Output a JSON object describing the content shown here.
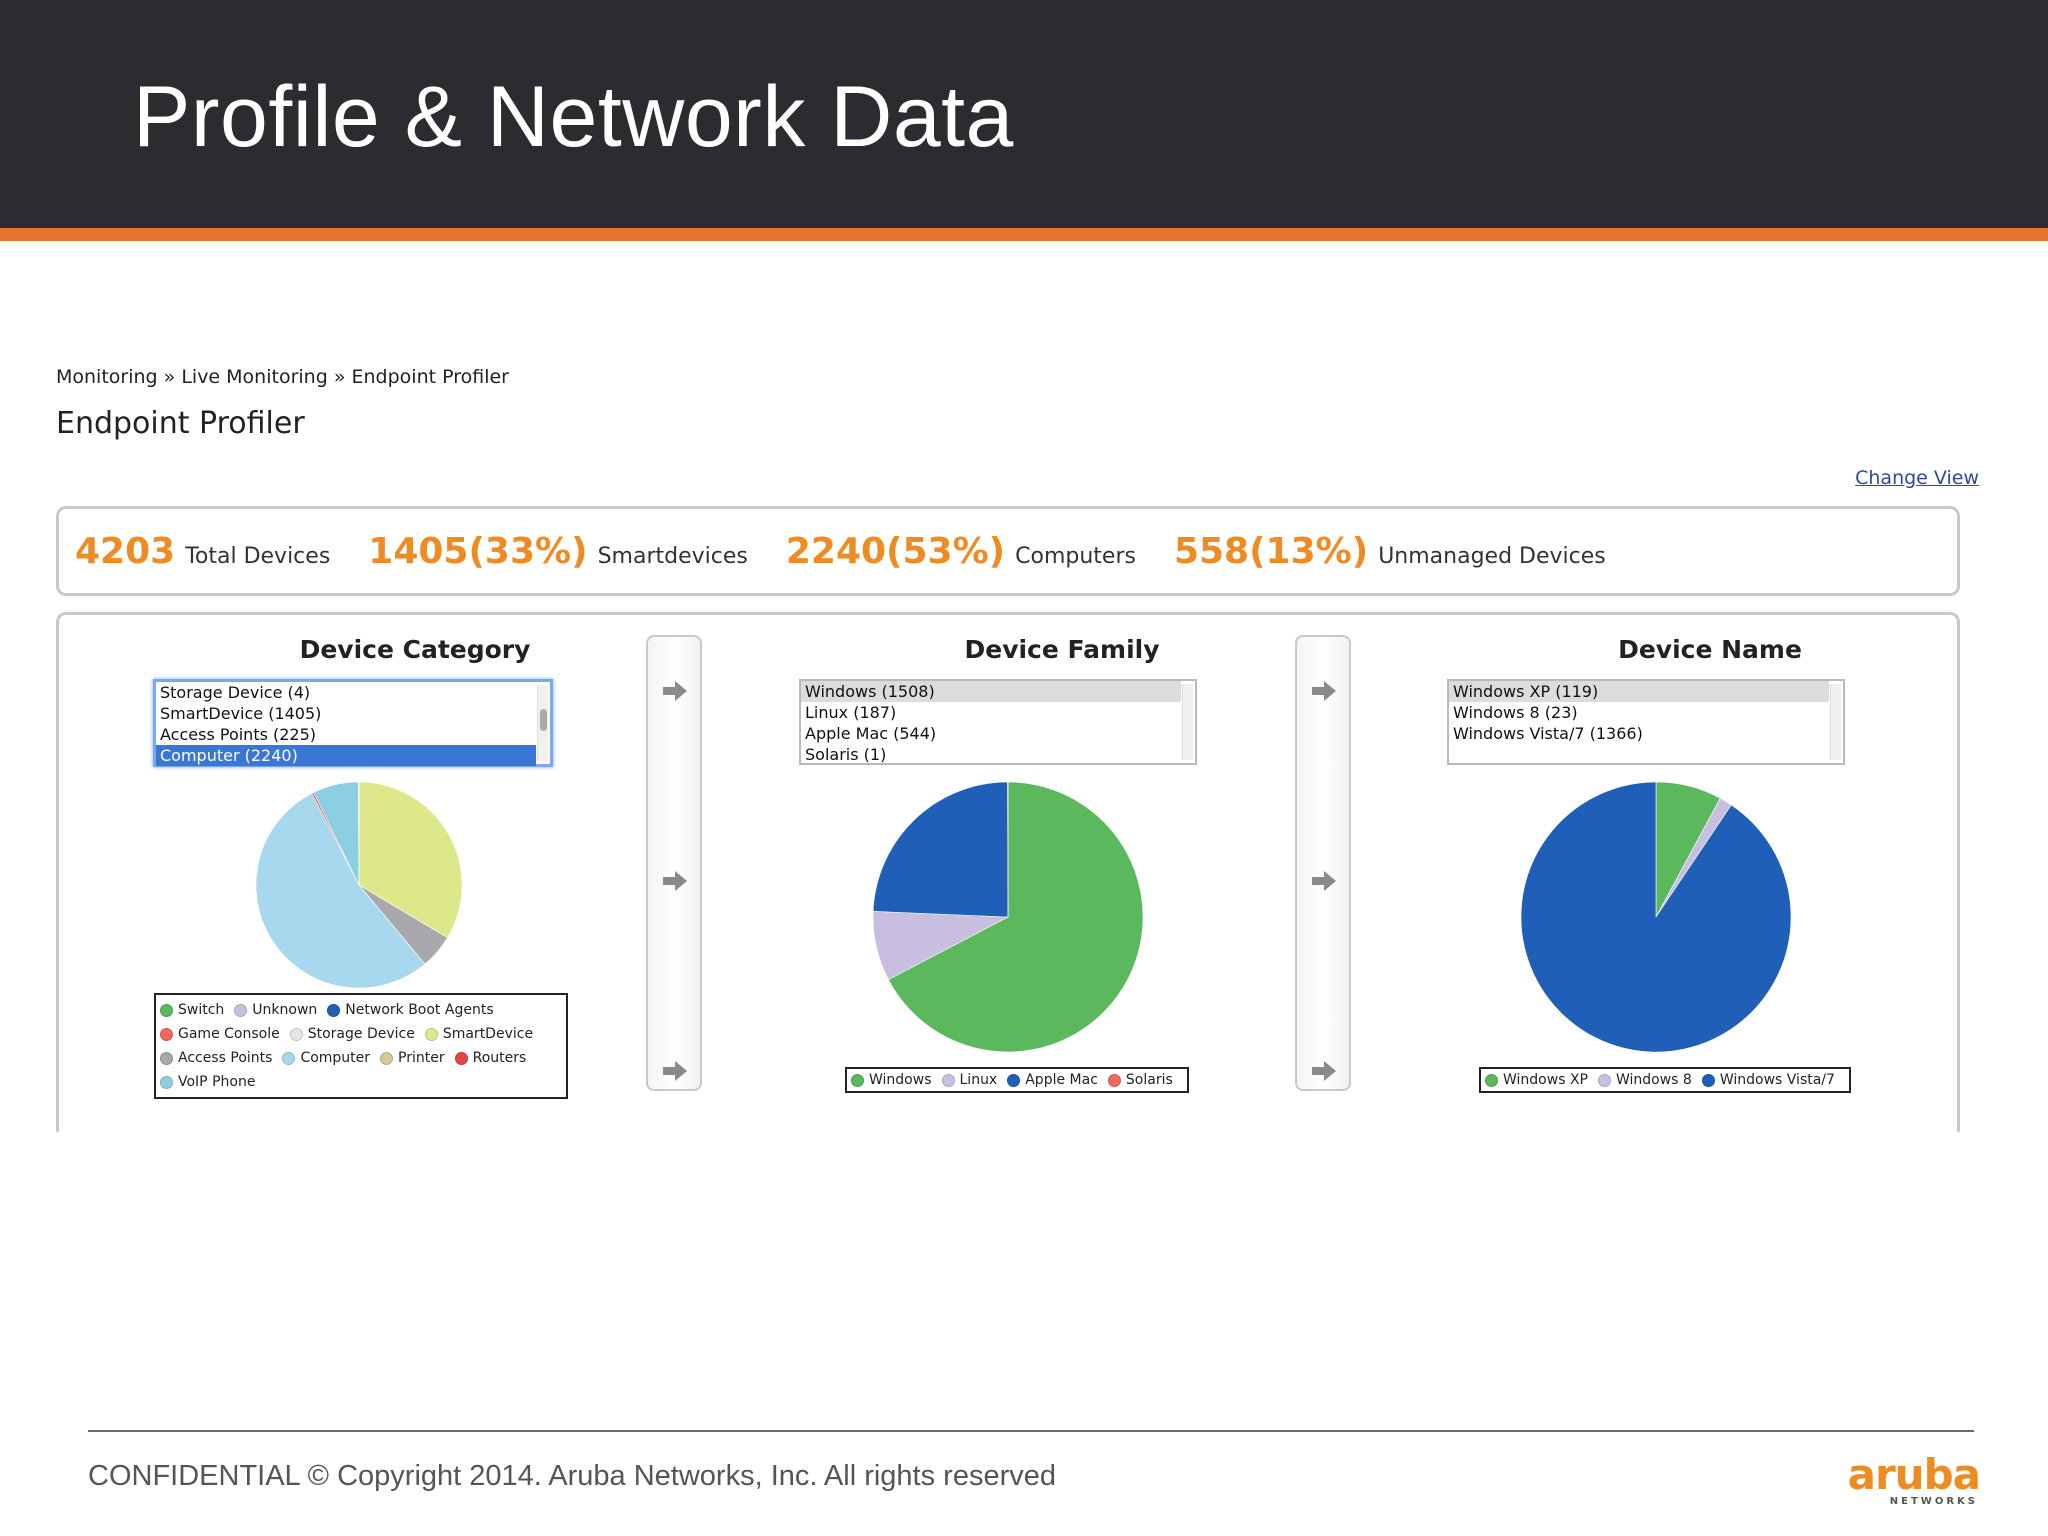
{
  "slide": {
    "title": "Profile & Network Data",
    "footer": "CONFIDENTIAL © Copyright 2014. Aruba Networks, Inc. All rights reserved",
    "logo_text": "aruba",
    "logo_sub": "NETWORKS"
  },
  "breadcrumb": [
    "Monitoring",
    "Live Monitoring",
    "Endpoint Profiler"
  ],
  "breadcrumb_sep": " » ",
  "page_title": "Endpoint Profiler",
  "change_view": "Change View",
  "summary": [
    {
      "value": "4203",
      "label": "Total Devices"
    },
    {
      "value": "1405(33%)",
      "label": "Smartdevices"
    },
    {
      "value": "2240(53%)",
      "label": "Computers"
    },
    {
      "value": "558(13%)",
      "label": "Unmanaged Devices"
    }
  ],
  "columns": {
    "category": {
      "title": "Device Category",
      "options": [
        "Storage Device (4)",
        "SmartDevice (1405)",
        "Access Points (225)",
        "Computer (2240)"
      ],
      "selected_index": 3,
      "legend": [
        [
          "Switch",
          "Unknown",
          "Network Boot Agents"
        ],
        [
          "Game Console",
          "Storage Device",
          "SmartDevice"
        ],
        [
          "Access Points",
          "Computer",
          "Printer",
          "Routers"
        ],
        [
          "VoIP Phone"
        ]
      ],
      "legend_colors": {
        "Switch": "#5cb85c",
        "Unknown": "#c8bfe0",
        "Network Boot Agents": "#1f5fb8",
        "Game Console": "#ee6b5a",
        "Storage Device": "#e6e6e6",
        "SmartDevice": "#dde88a",
        "Access Points": "#a9a9ad",
        "Computer": "#a8d8ee",
        "Printer": "#d8c898",
        "Routers": "#e64545",
        "VoIP Phone": "#8ccfe0"
      }
    },
    "family": {
      "title": "Device Family",
      "options": [
        "Windows (1508)",
        "Linux (187)",
        "Apple Mac (544)",
        "Solaris (1)"
      ],
      "highlighted_index": 0,
      "legend": [
        "Windows",
        "Linux",
        "Apple Mac",
        "Solaris"
      ],
      "legend_colors": {
        "Windows": "#5cb85c",
        "Linux": "#c8bfe0",
        "Apple Mac": "#1f5fb8",
        "Solaris": "#ee6b5a"
      }
    },
    "name": {
      "title": "Device Name",
      "options": [
        "Windows XP (119)",
        "Windows 8 (23)",
        "Windows Vista/7 (1366)"
      ],
      "highlighted_index": 0,
      "legend": [
        "Windows XP",
        "Windows 8",
        "Windows Vista/7"
      ],
      "legend_colors": {
        "Windows XP": "#5cb85c",
        "Windows 8": "#c8bfe0",
        "Windows Vista/7": "#1f5fb8"
      }
    }
  },
  "chart_data": [
    {
      "type": "pie",
      "labels": [
        "SmartDevice",
        "Access Points",
        "Computer",
        "Routers",
        "VoIP Phone",
        "Storage Device"
      ],
      "values": [
        1405,
        225,
        2240,
        12,
        300,
        4
      ],
      "colors": [
        "#dde88a",
        "#a9a9ad",
        "#a8d8ee",
        "#e64545",
        "#8ccfe0",
        "#e6e6e6"
      ]
    },
    {
      "type": "pie",
      "labels": [
        "Windows",
        "Linux",
        "Apple Mac",
        "Solaris"
      ],
      "values": [
        1508,
        187,
        544,
        1
      ],
      "colors": [
        "#5cb85c",
        "#c8bfe0",
        "#1f5fb8",
        "#ee6b5a"
      ]
    },
    {
      "type": "pie",
      "labels": [
        "Windows XP",
        "Windows 8",
        "Windows Vista/7"
      ],
      "values": [
        119,
        23,
        1366
      ],
      "colors": [
        "#5cb85c",
        "#c8bfe0",
        "#1f5fb8"
      ]
    }
  ]
}
